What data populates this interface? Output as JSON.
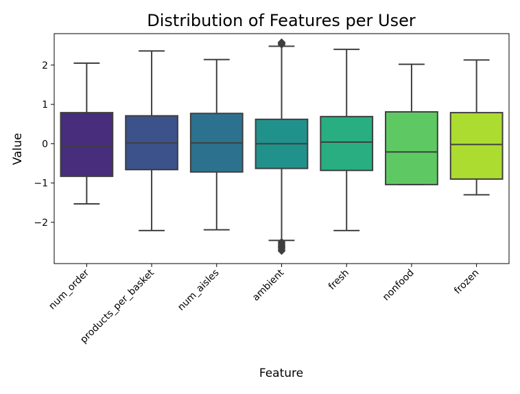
{
  "chart_data": {
    "type": "box",
    "title": "Distribution of Features per User",
    "xlabel": "Feature",
    "ylabel": "Value",
    "ylim": [
      -3.05,
      2.8
    ],
    "yticks": [
      -2,
      -1,
      0,
      1,
      2
    ],
    "ytick_labels": [
      "−2",
      "−1",
      "0",
      "1",
      "2"
    ],
    "grid": false,
    "categories": [
      "num_order",
      "products_per_basket",
      "num_aisles",
      "ambient",
      "fresh",
      "nonfood",
      "frozen"
    ],
    "boxes": [
      {
        "name": "num_order",
        "whisker_low": -1.53,
        "q1": -0.83,
        "median": -0.06,
        "q3": 0.79,
        "whisker_high": 2.05,
        "outliers": [],
        "color": "#472d7b"
      },
      {
        "name": "products_per_basket",
        "whisker_low": -2.21,
        "q1": -0.66,
        "median": 0.02,
        "q3": 0.71,
        "whisker_high": 2.36,
        "outliers": [],
        "color": "#3b528b"
      },
      {
        "name": "num_aisles",
        "whisker_low": -2.19,
        "q1": -0.72,
        "median": 0.02,
        "q3": 0.77,
        "whisker_high": 2.14,
        "outliers": [],
        "color": "#2c728e"
      },
      {
        "name": "ambient",
        "whisker_low": -2.46,
        "q1": -0.63,
        "median": 0.0,
        "q3": 0.62,
        "whisker_high": 2.48,
        "outliers": [
          2.52,
          2.54,
          2.56,
          2.58,
          -2.5,
          -2.53,
          -2.57,
          -2.6,
          -2.63,
          -2.66,
          -2.7,
          -2.73
        ],
        "color": "#21918c"
      },
      {
        "name": "fresh",
        "whisker_low": -2.21,
        "q1": -0.68,
        "median": 0.04,
        "q3": 0.69,
        "whisker_high": 2.4,
        "outliers": [],
        "color": "#28ae80"
      },
      {
        "name": "nonfood",
        "whisker_low": -1.04,
        "q1": -1.04,
        "median": -0.21,
        "q3": 0.81,
        "whisker_high": 2.02,
        "outliers": [],
        "color": "#5ec962"
      },
      {
        "name": "frozen",
        "whisker_low": -1.3,
        "q1": -0.9,
        "median": -0.02,
        "q3": 0.79,
        "whisker_high": 2.13,
        "outliers": [],
        "color": "#addc30"
      }
    ]
  }
}
